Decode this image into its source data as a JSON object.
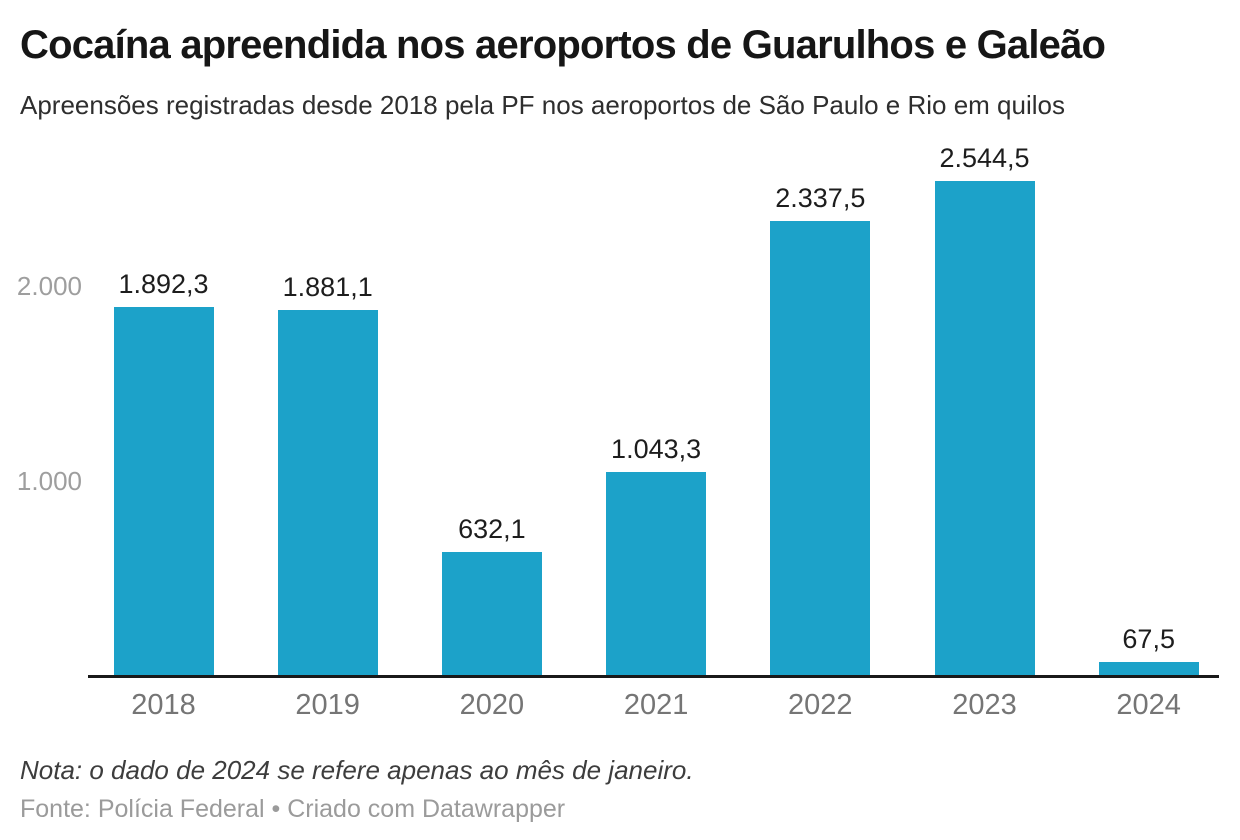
{
  "chart_data": {
    "type": "bar",
    "title": "Cocaína apreendida nos aeroportos de Guarulhos e Galeão",
    "subtitle": "Apreensões registradas desde 2018 pela PF nos aeroportos de São Paulo e Rio em quilos",
    "unit": "quilos",
    "categories": [
      "2018",
      "2019",
      "2020",
      "2021",
      "2022",
      "2023",
      "2024"
    ],
    "values": [
      1892.3,
      1881.1,
      632.1,
      1043.3,
      2337.5,
      2544.5,
      67.5
    ],
    "value_labels": [
      "1.892,3",
      "1.881,1",
      "632,1",
      "1.043,3",
      "2.337,5",
      "2.544,5",
      "67,5"
    ],
    "xlabel": "",
    "ylabel": "",
    "ylim": [
      0,
      2700
    ],
    "yticks": [
      {
        "value": 1000,
        "label": "1.000"
      },
      {
        "value": 2000,
        "label": "2.000"
      }
    ],
    "grid": "off",
    "legend": "none",
    "colors": {
      "bar": "#1CA2C9",
      "value_label": "#1d1d1d",
      "axis_line": "#191919",
      "x_tick_text": "#757575",
      "y_tick_text": "#9e9e9e"
    }
  },
  "footer": {
    "note": "Nota: o dado de 2024 se refere apenas ao mês de janeiro.",
    "source": "Fonte: Polícia Federal • Criado com Datawrapper"
  }
}
